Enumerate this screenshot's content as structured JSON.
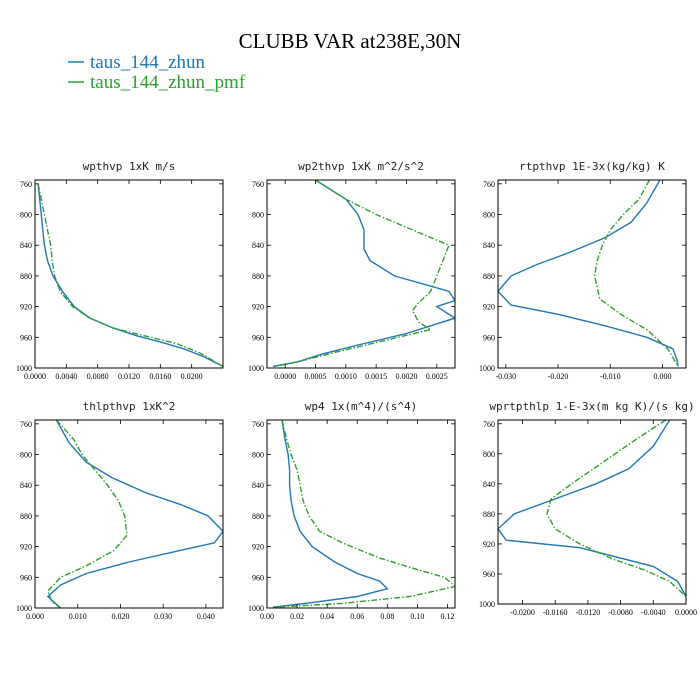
{
  "title": "CLUBB VAR at238E,30N",
  "legend": [
    {
      "label": "taus_144_zhun",
      "color": "#1f77b4",
      "dash": "solid"
    },
    {
      "label": "taus_144_zhun_pmf",
      "color": "#2ca02c",
      "dash": "dashdot"
    }
  ],
  "chart_data": [
    {
      "type": "line",
      "title": "wpthvp  1xK m/s",
      "xlim": [
        0.0,
        0.024
      ],
      "ylim": [
        1000,
        755
      ],
      "xticks": [
        0.0,
        0.004,
        0.008,
        0.012,
        0.016,
        0.02
      ],
      "xtick_labels": [
        "0.0000",
        "0.0040",
        "0.0080",
        "0.0120",
        "0.0160",
        "0.0200"
      ],
      "yticks": [
        760,
        800,
        840,
        880,
        920,
        960,
        1000
      ],
      "series": [
        {
          "name": "taus_144_zhun",
          "x": [
            0.0004,
            0.0006,
            0.0008,
            0.001,
            0.0012,
            0.0016,
            0.0023,
            0.0035,
            0.005,
            0.007,
            0.01,
            0.013,
            0.016,
            0.019,
            0.0215,
            0.024
          ],
          "y": [
            760,
            780,
            800,
            820,
            840,
            860,
            880,
            900,
            920,
            935,
            948,
            958,
            966,
            975,
            985,
            998
          ]
        },
        {
          "name": "taus_144_zhun_pmf",
          "x": [
            0.0004,
            0.0008,
            0.0012,
            0.0016,
            0.002,
            0.0022,
            0.0025,
            0.0032,
            0.0048,
            0.007,
            0.01,
            0.014,
            0.018,
            0.021,
            0.024
          ],
          "y": [
            760,
            780,
            800,
            820,
            840,
            860,
            880,
            900,
            920,
            935,
            948,
            958,
            968,
            980,
            998
          ]
        }
      ]
    },
    {
      "type": "line",
      "title": "wp2thvp  1xK m^2/s^2",
      "xlim": [
        -0.0003,
        0.0028
      ],
      "ylim": [
        1000,
        755
      ],
      "xticks": [
        0.0,
        0.0005,
        0.001,
        0.0015,
        0.002,
        0.0025
      ],
      "xtick_labels": [
        "0.0000",
        "0.0005",
        "0.0010",
        "0.0015",
        "0.0020",
        "0.0025"
      ],
      "yticks": [
        760,
        800,
        840,
        880,
        920,
        960,
        1000
      ],
      "series": [
        {
          "name": "taus_144_zhun",
          "x": [
            0.0005,
            0.001,
            0.0012,
            0.0013,
            0.0013,
            0.0013,
            0.0014,
            0.0018,
            0.0027,
            0.0028,
            0.0025,
            0.0028,
            0.002,
            0.0012,
            0.0006,
            0.0002,
            -0.0002
          ],
          "y": [
            755,
            780,
            800,
            820,
            840,
            845,
            860,
            880,
            900,
            912,
            920,
            935,
            955,
            970,
            982,
            992,
            998
          ]
        },
        {
          "name": "taus_144_zhun_pmf",
          "x": [
            0.0005,
            0.001,
            0.0015,
            0.0021,
            0.0027,
            0.0026,
            0.0025,
            0.0024,
            0.0022,
            0.0021,
            0.0022,
            0.0024,
            0.0016,
            0.0008,
            0.0002,
            -0.0002
          ],
          "y": [
            755,
            780,
            800,
            820,
            840,
            860,
            880,
            900,
            915,
            925,
            940,
            950,
            965,
            980,
            992,
            998
          ]
        }
      ]
    },
    {
      "type": "line",
      "title": "rtpthvp  1E-3x(kg/kg) K",
      "xlim": [
        -0.0315,
        0.0045
      ],
      "ylim": [
        1000,
        755
      ],
      "xticks": [
        -0.03,
        -0.02,
        -0.01,
        0.0
      ],
      "xtick_labels": [
        "-0.030",
        "-0.020",
        "-0.010",
        "0.000"
      ],
      "yticks": [
        760,
        800,
        840,
        880,
        920,
        960,
        1000
      ],
      "series": [
        {
          "name": "taus_144_zhun",
          "x": [
            -0.0005,
            -0.003,
            -0.006,
            -0.011,
            -0.018,
            -0.024,
            -0.029,
            -0.0315,
            -0.029,
            -0.02,
            -0.011,
            -0.003,
            0.002,
            0.0028,
            0.003
          ],
          "y": [
            755,
            785,
            810,
            830,
            850,
            865,
            880,
            900,
            918,
            930,
            945,
            960,
            975,
            990,
            998
          ]
        },
        {
          "name": "taus_144_zhun_pmf",
          "x": [
            -0.0025,
            -0.0045,
            -0.0075,
            -0.01,
            -0.0115,
            -0.0125,
            -0.013,
            -0.012,
            -0.008,
            -0.003,
            0.001,
            0.003
          ],
          "y": [
            755,
            780,
            800,
            820,
            840,
            860,
            880,
            910,
            930,
            950,
            975,
            998
          ]
        }
      ]
    },
    {
      "type": "line",
      "title": "thlpthvp  1xK^2",
      "xlim": [
        0.0,
        0.044
      ],
      "ylim": [
        1000,
        755
      ],
      "xticks": [
        0.0,
        0.01,
        0.02,
        0.03,
        0.04
      ],
      "xtick_labels": [
        "0.000",
        "0.010",
        "0.020",
        "0.030",
        "0.040"
      ],
      "yticks": [
        760,
        800,
        840,
        880,
        920,
        960,
        1000
      ],
      "series": [
        {
          "name": "taus_144_zhun",
          "x": [
            0.005,
            0.008,
            0.012,
            0.018,
            0.026,
            0.034,
            0.0405,
            0.044,
            0.042,
            0.034,
            0.022,
            0.012,
            0.006,
            0.003,
            0.005,
            0.006
          ],
          "y": [
            755,
            785,
            810,
            830,
            850,
            865,
            880,
            900,
            915,
            925,
            940,
            955,
            970,
            985,
            995,
            1000
          ]
        },
        {
          "name": "taus_144_zhun_pmf",
          "x": [
            0.005,
            0.009,
            0.011,
            0.014,
            0.017,
            0.0195,
            0.021,
            0.0215,
            0.0185,
            0.012,
            0.006,
            0.003,
            0.004,
            0.006
          ],
          "y": [
            755,
            780,
            800,
            820,
            840,
            860,
            880,
            905,
            925,
            945,
            960,
            978,
            992,
            1000
          ]
        }
      ]
    },
    {
      "type": "line",
      "title": "wp4  1x(m^4)/(s^4)",
      "xlim": [
        0.0,
        0.125
      ],
      "ylim": [
        1000,
        755
      ],
      "xticks": [
        0.0,
        0.02,
        0.04,
        0.06,
        0.08,
        0.1,
        0.12
      ],
      "xtick_labels": [
        "0.00",
        "0.02",
        "0.04",
        "0.06",
        "0.08",
        "0.10",
        "0.12"
      ],
      "yticks": [
        760,
        800,
        840,
        880,
        920,
        960,
        1000
      ],
      "series": [
        {
          "name": "taus_144_zhun",
          "x": [
            0.01,
            0.012,
            0.014,
            0.015,
            0.015,
            0.016,
            0.018,
            0.022,
            0.03,
            0.045,
            0.06,
            0.075,
            0.08,
            0.06,
            0.03,
            0.004
          ],
          "y": [
            755,
            780,
            800,
            820,
            840,
            860,
            880,
            900,
            920,
            940,
            955,
            965,
            975,
            985,
            993,
            999
          ]
        },
        {
          "name": "taus_144_zhun_pmf",
          "x": [
            0.01,
            0.013,
            0.016,
            0.02,
            0.022,
            0.024,
            0.028,
            0.035,
            0.05,
            0.075,
            0.1,
            0.118,
            0.125,
            0.095,
            0.05,
            0.004
          ],
          "y": [
            755,
            780,
            800,
            820,
            840,
            860,
            880,
            900,
            915,
            935,
            950,
            960,
            972,
            985,
            994,
            999
          ]
        }
      ]
    },
    {
      "type": "line",
      "title": "wprtpthlp  1-E-3x(m kg K)/(s kg)",
      "xlim": [
        -0.023,
        0.0
      ],
      "ylim": [
        1000,
        755
      ],
      "xticks": [
        -0.02,
        -0.016,
        -0.012,
        -0.008,
        -0.004,
        0.0
      ],
      "xtick_labels": [
        "-0.0200",
        "-0.0160",
        "-0.0120",
        "-0.0080",
        "-0.0040",
        "0.0000"
      ],
      "yticks": [
        760,
        800,
        840,
        880,
        920,
        960,
        1000
      ],
      "series": [
        {
          "name": "taus_144_zhun",
          "x": [
            -0.002,
            -0.004,
            -0.007,
            -0.011,
            -0.016,
            -0.021,
            -0.023,
            -0.022,
            -0.013,
            -0.004,
            -0.001,
            0.0
          ],
          "y": [
            755,
            790,
            820,
            840,
            860,
            880,
            900,
            915,
            925,
            950,
            970,
            990
          ]
        },
        {
          "name": "taus_144_zhun_pmf",
          "x": [
            -0.0025,
            -0.006,
            -0.01,
            -0.014,
            -0.0165,
            -0.017,
            -0.016,
            -0.013,
            -0.009,
            -0.005,
            -0.002,
            0.0
          ],
          "y": [
            755,
            780,
            810,
            840,
            860,
            880,
            900,
            920,
            940,
            955,
            970,
            990
          ]
        }
      ]
    }
  ]
}
